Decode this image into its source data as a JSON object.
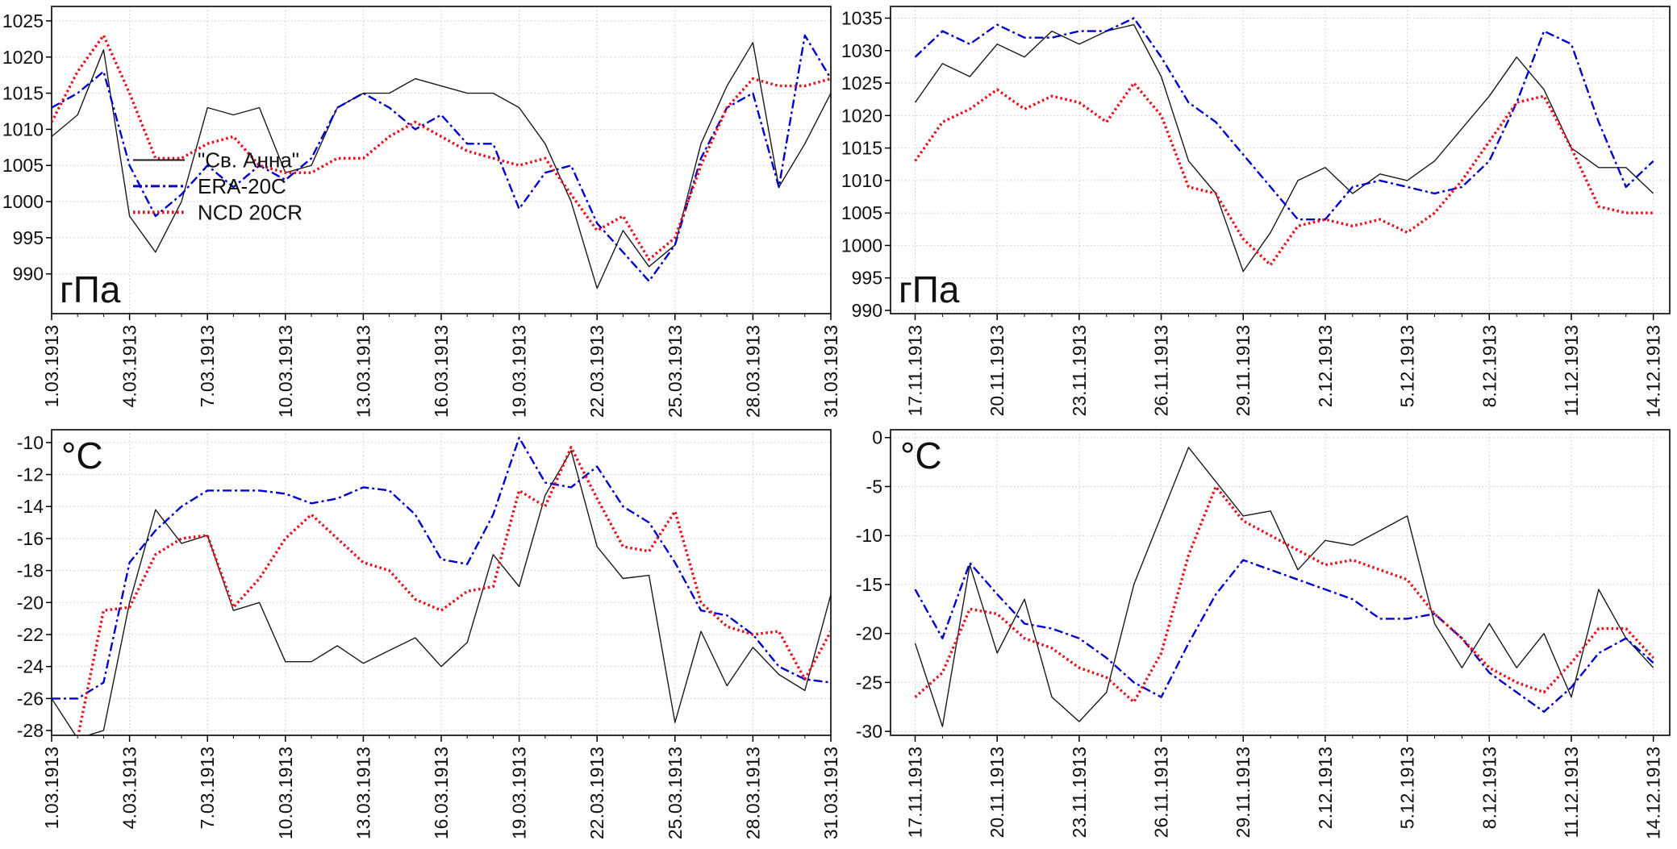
{
  "figure": {
    "background": "#ffffff",
    "text_color": "#111111",
    "grid_color": "#c8c8c8"
  },
  "chart_data": [
    {
      "id": "pressure-march-1913",
      "type": "line",
      "unit_label": "гПа",
      "unit_label_position": "bottom-left",
      "ylim": [
        984.5,
        1027
      ],
      "yticks": [
        990,
        995,
        1000,
        1005,
        1010,
        1015,
        1020,
        1025
      ],
      "x_domain": [
        0,
        30
      ],
      "x_tick_labels": [
        "1.03.1913",
        "4.03.1913",
        "7.03.1913",
        "10.03.1913",
        "13.03.1913",
        "16.03.1913",
        "19.03.1913",
        "22.03.1913",
        "25.03.1913",
        "28.03.1913",
        "31.03.1913"
      ],
      "x_tick_indices": [
        0,
        3,
        6,
        9,
        12,
        15,
        18,
        21,
        24,
        27,
        30
      ],
      "grid": true,
      "show_legend": true,
      "legend_position": "inside-left-middle",
      "series": [
        {
          "name": "\"Св. Анна\"",
          "color": "#1a1a1a",
          "dash": "solid",
          "width": 1.4,
          "values": [
            1009,
            1012,
            1021,
            998,
            993,
            1000,
            1013,
            1012,
            1013,
            1004,
            1005,
            1013,
            1015,
            1015,
            1017,
            1016,
            1015,
            1015,
            1013,
            1008,
            1000,
            988,
            996,
            991,
            994,
            1008,
            1016,
            1022,
            1002,
            1008,
            1015
          ]
        },
        {
          "name": "ERA-20C",
          "color": "#0000cd",
          "dash": "dashdot",
          "width": 2.4,
          "values": [
            1013,
            1015,
            1018,
            1005,
            998,
            1001,
            1005,
            1002,
            1005,
            1003,
            1006,
            1013,
            1015,
            1013,
            1010,
            1012,
            1008,
            1008,
            999,
            1004,
            1005,
            997,
            993,
            989,
            994,
            1006,
            1013,
            1015,
            1002,
            1023,
            1017
          ]
        },
        {
          "name": "NCD 20CR",
          "color": "#e8101c",
          "dash": "dotted",
          "width": 3.4,
          "values": [
            1011,
            1018,
            1023,
            1015,
            1006,
            1006,
            1008,
            1009,
            1005,
            1004,
            1004,
            1006,
            1006,
            1009,
            1011,
            1009,
            1007,
            1006,
            1005,
            1006,
            1001,
            996,
            998,
            992,
            995,
            1005,
            1013,
            1017,
            1016,
            1016,
            1017
          ]
        }
      ]
    },
    {
      "id": "pressure-nov-dec-1913",
      "type": "line",
      "unit_label": "гПа",
      "unit_label_position": "bottom-left",
      "ylim": [
        989.5,
        1036.8
      ],
      "yticks": [
        990,
        995,
        1000,
        1005,
        1010,
        1015,
        1020,
        1025,
        1030,
        1035
      ],
      "x_domain": [
        -0.9,
        27.6
      ],
      "x_tick_labels": [
        "17.11.1913",
        "20.11.1913",
        "23.11.1913",
        "26.11.1913",
        "29.11.1913",
        "2.12.1913",
        "5.12.1913",
        "8.12.1913",
        "11.12.1913",
        "14.12.1913"
      ],
      "x_tick_indices": [
        0,
        3,
        6,
        9,
        12,
        15,
        18,
        21,
        24,
        27
      ],
      "grid": true,
      "show_legend": false,
      "series": [
        {
          "name": "\"Св. Анна\"",
          "color": "#1a1a1a",
          "dash": "solid",
          "width": 1.4,
          "values": [
            1022,
            1028,
            1026,
            1031,
            1029,
            1033,
            1031,
            1033,
            1034,
            1026,
            1013,
            1008,
            996,
            1002,
            1010,
            1012,
            1008,
            1011,
            1010,
            1013,
            1018,
            1023,
            1029,
            1024,
            1015,
            1012,
            1012,
            1008
          ]
        },
        {
          "name": "ERA-20C",
          "color": "#0000cd",
          "dash": "dashdot",
          "width": 2.4,
          "values": [
            1029,
            1033,
            1031,
            1034,
            1032,
            1032,
            1033,
            1033,
            1035,
            1029,
            1022,
            1019,
            1014,
            1009,
            1004,
            1004,
            1009,
            1010,
            1009,
            1008,
            1009,
            1013,
            1022,
            1033,
            1031,
            1019,
            1009,
            1013
          ]
        },
        {
          "name": "NCD 20CR",
          "color": "#e8101c",
          "dash": "dotted",
          "width": 3.4,
          "values": [
            1013,
            1019,
            1021,
            1024,
            1021,
            1023,
            1022,
            1019,
            1025,
            1020,
            1009,
            1008,
            1001,
            997,
            1003,
            1004,
            1003,
            1004,
            1002,
            1005,
            1010,
            1016,
            1022,
            1023,
            1015,
            1006,
            1005,
            1005
          ]
        }
      ]
    },
    {
      "id": "temperature-march-1913",
      "type": "line",
      "unit_label": "°C",
      "unit_label_position": "top-left",
      "ylim": [
        -28.3,
        -9.2
      ],
      "yticks": [
        -10,
        -12,
        -14,
        -16,
        -18,
        -20,
        -22,
        -24,
        -26,
        -28
      ],
      "x_domain": [
        0,
        30
      ],
      "x_tick_labels": [
        "1.03.1913",
        "4.03.1913",
        "7.03.1913",
        "10.03.1913",
        "13.03.1913",
        "16.03.1913",
        "19.03.1913",
        "22.03.1913",
        "25.03.1913",
        "28.03.1913",
        "31.03.1913"
      ],
      "x_tick_indices": [
        0,
        3,
        6,
        9,
        12,
        15,
        18,
        21,
        24,
        27,
        30
      ],
      "grid": true,
      "show_legend": false,
      "series": [
        {
          "name": "\"Св. Анна\"",
          "color": "#1a1a1a",
          "dash": "solid",
          "width": 1.4,
          "values": [
            -26,
            -28.5,
            -28,
            -20,
            -14.2,
            -16.3,
            -15.8,
            -20.5,
            -20,
            -23.7,
            -23.7,
            -22.7,
            -23.8,
            -23,
            -22.2,
            -24,
            -22.5,
            -17,
            -19,
            -13.3,
            -10.5,
            -16.5,
            -18.5,
            -18.3,
            -27.5,
            -21.8,
            -25.2,
            -22.8,
            -24.5,
            -25.5,
            -19.5
          ]
        },
        {
          "name": "ERA-20C",
          "color": "#0000cd",
          "dash": "dashdot",
          "width": 2.4,
          "values": [
            -26,
            -26,
            -25,
            -17.5,
            -15.5,
            -14,
            -13,
            -13,
            -13,
            -13.2,
            -13.8,
            -13.5,
            -12.8,
            -13,
            -14.5,
            -17.3,
            -17.6,
            -14.5,
            -9.7,
            -12.5,
            -12.8,
            -11.5,
            -14,
            -15,
            -17.5,
            -20.5,
            -20.8,
            -22,
            -24,
            -24.8,
            -25
          ]
        },
        {
          "name": "NCD 20CR",
          "color": "#e8101c",
          "dash": "dotted",
          "width": 3.4,
          "values": [
            -29,
            -28.5,
            -20.5,
            -20.3,
            -17,
            -16,
            -15.8,
            -20.3,
            -18.5,
            -16,
            -14.5,
            -16,
            -17.5,
            -18,
            -19.8,
            -20.5,
            -19.3,
            -19,
            -13,
            -14,
            -10.3,
            -13.5,
            -16.5,
            -16.8,
            -14.3,
            -20,
            -21.5,
            -22,
            -21.8,
            -24.8,
            -21.8
          ]
        }
      ]
    },
    {
      "id": "temperature-nov-dec-1913",
      "type": "line",
      "unit_label": "°C",
      "unit_label_position": "top-left",
      "ylim": [
        -30.4,
        0.8
      ],
      "yticks": [
        0,
        -5,
        -10,
        -15,
        -20,
        -25,
        -30
      ],
      "x_domain": [
        -0.9,
        27.6
      ],
      "x_tick_labels": [
        "17.11.1913",
        "20.11.1913",
        "23.11.1913",
        "26.11.1913",
        "29.11.1913",
        "2.12.1913",
        "5.12.1913",
        "8.12.1913",
        "11.12.1913",
        "14.12.1913"
      ],
      "x_tick_indices": [
        0,
        3,
        6,
        9,
        12,
        15,
        18,
        21,
        24,
        27
      ],
      "grid": true,
      "show_legend": false,
      "series": [
        {
          "name": "\"Св. Анна\"",
          "color": "#1a1a1a",
          "dash": "solid",
          "width": 1.4,
          "values": [
            -21,
            -29.5,
            -13,
            -22,
            -16.5,
            -26.5,
            -29,
            -26,
            -15,
            -8,
            -1,
            -4.5,
            -8,
            -7.5,
            -13.5,
            -10.5,
            -11,
            -9.5,
            -8,
            -19,
            -23.5,
            -19,
            -23.5,
            -20,
            -26.5,
            -15.5,
            -20.5,
            -23.5
          ]
        },
        {
          "name": "ERA-20C",
          "color": "#0000cd",
          "dash": "dashdot",
          "width": 2.4,
          "values": [
            -15.5,
            -20.5,
            -12.8,
            -16,
            -19,
            -19.5,
            -20.5,
            -22.5,
            -25,
            -26.5,
            -21,
            -16,
            -12.5,
            -13.5,
            -14.5,
            -15.5,
            -16.5,
            -18.5,
            -18.5,
            -18,
            -20.5,
            -24,
            -26,
            -28,
            -25.5,
            -22,
            -20.5,
            -23
          ]
        },
        {
          "name": "NCD 20CR",
          "color": "#e8101c",
          "dash": "dotted",
          "width": 3.4,
          "values": [
            -26.5,
            -24,
            -17.5,
            -18,
            -20.5,
            -21.5,
            -23.5,
            -24.5,
            -27,
            -22,
            -12,
            -5,
            -8.5,
            -10,
            -11.5,
            -13,
            -12.5,
            -13.5,
            -14.5,
            -18,
            -20.5,
            -23.5,
            -25,
            -26,
            -23,
            -19.5,
            -19.5,
            -22.5
          ]
        }
      ]
    }
  ]
}
